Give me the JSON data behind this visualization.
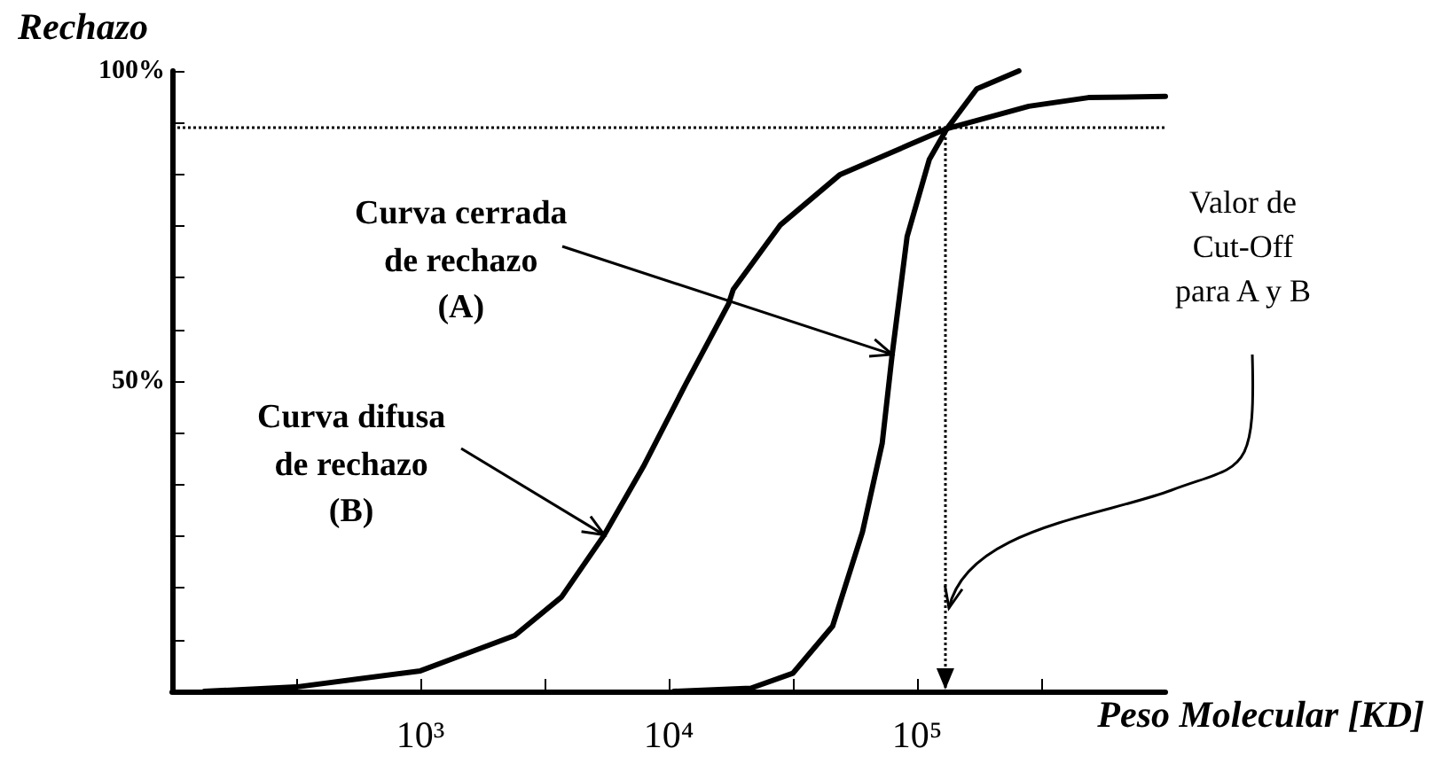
{
  "chart_data": {
    "type": "line",
    "ylabel": "Rechazo",
    "xlabel": "Peso Molecular [KD]",
    "log": "x",
    "xlim": [
      100,
      1000000
    ],
    "xticks": [
      {
        "value": 316,
        "label": null
      },
      {
        "value": 1000,
        "label": "10³"
      },
      {
        "value": 3162,
        "label": null
      },
      {
        "value": 10000,
        "label": "10⁴"
      },
      {
        "value": 31623,
        "label": null
      },
      {
        "value": 100000,
        "label": "10⁵"
      },
      {
        "value": 316228,
        "label": null
      }
    ],
    "ylim": [
      0,
      100
    ],
    "yticks": [
      {
        "value": 0,
        "label": null
      },
      {
        "value": 8.33,
        "label": null
      },
      {
        "value": 16.67,
        "label": null
      },
      {
        "value": 25,
        "label": null
      },
      {
        "value": 33.33,
        "label": null
      },
      {
        "value": 41.67,
        "label": null
      },
      {
        "value": 50,
        "label": "50%"
      },
      {
        "value": 58.33,
        "label": null
      },
      {
        "value": 66.67,
        "label": null
      },
      {
        "value": 75,
        "label": null
      },
      {
        "value": 83.33,
        "label": null
      },
      {
        "value": 91.67,
        "label": null
      },
      {
        "value": 100,
        "label": "100%"
      }
    ],
    "series": [
      {
        "color": "#000000",
        "x": [
          135,
          316,
          1000,
          2400,
          3700,
          5500,
          7900,
          11700,
          17400,
          18200,
          28200,
          49000,
          93000,
          132000,
          282000,
          490000,
          1000000
        ],
        "values": [
          0,
          0.7,
          3.3,
          9,
          15.2,
          25.2,
          36.2,
          49.5,
          62.4,
          64.8,
          75.2,
          83.3,
          88.1,
          90.7,
          94.3,
          95.7,
          95.9
        ]
      },
      {
        "color": "#000000",
        "x": [
          10500,
          21400,
          31600,
          45700,
          60300,
          72400,
          79400,
          91200,
          112000,
          132000,
          174000,
          257000
        ],
        "values": [
          0,
          0.5,
          2.9,
          10.5,
          25.7,
          40,
          54.3,
          73.3,
          85.7,
          90.7,
          97.1,
          100
        ]
      }
    ],
    "ref_lines": [
      {
        "axis": "y",
        "value": 91,
        "line_style": "dotted",
        "color": "#000000"
      },
      {
        "axis": "x",
        "value": 130000,
        "line_style": "dotted",
        "color": "#000000"
      }
    ],
    "annotations": [
      {
        "text": "Curva cerrada\nde rechazo\n(A)",
        "x": 79400,
        "y": 54.3
      },
      {
        "text": "Curva difusa\nde rechazo\n(B)",
        "x": 5500,
        "y": 25.2
      },
      "Valor de\nCut-Off\npara A y B"
    ]
  }
}
